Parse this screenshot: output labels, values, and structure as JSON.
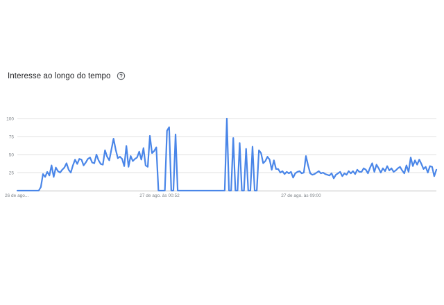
{
  "header": {
    "title": "Interesse ao longo do tempo",
    "help_icon": "help-circle-icon"
  },
  "colors": {
    "line": "#4a86e8",
    "grid": "#e0e0e0",
    "axis": "#bdbdbd",
    "text": "#80868b"
  },
  "chart_data": {
    "type": "line",
    "title": "Interesse ao longo do tempo",
    "xlabel": "",
    "ylabel": "",
    "ylim": [
      0,
      100
    ],
    "yticks": [
      25,
      50,
      75,
      100
    ],
    "grid": true,
    "x_ticks": [
      "26 de ago...",
      "27 de ago. às 00:52",
      "27 de ago. às 09:00"
    ],
    "series": [
      {
        "name": "",
        "values": [
          0,
          0,
          0,
          0,
          0,
          0,
          0,
          0,
          0,
          0,
          0,
          5,
          23,
          19,
          26,
          21,
          35,
          19,
          32,
          27,
          25,
          29,
          32,
          38,
          29,
          25,
          35,
          43,
          37,
          44,
          43,
          35,
          39,
          44,
          46,
          39,
          38,
          50,
          42,
          37,
          36,
          56,
          47,
          42,
          57,
          72,
          57,
          45,
          47,
          44,
          34,
          62,
          33,
          48,
          41,
          44,
          46,
          54,
          43,
          59,
          35,
          33,
          76,
          52,
          55,
          60,
          0,
          0,
          0,
          0,
          83,
          88,
          0,
          0,
          78,
          0,
          0,
          0,
          0,
          0,
          0,
          0,
          0,
          0,
          0,
          0,
          0,
          0,
          0,
          0,
          0,
          0,
          0,
          0,
          0,
          0,
          0,
          0,
          100,
          0,
          0,
          73,
          0,
          0,
          66,
          0,
          0,
          58,
          0,
          0,
          61,
          0,
          0,
          56,
          52,
          38,
          41,
          47,
          43,
          29,
          42,
          30,
          30,
          25,
          27,
          23,
          26,
          24,
          26,
          18,
          24,
          26,
          27,
          24,
          25,
          48,
          35,
          24,
          22,
          23,
          25,
          27,
          24,
          25,
          23,
          22,
          21,
          24,
          17,
          22,
          24,
          26,
          20,
          24,
          22,
          27,
          24,
          27,
          23,
          29,
          26,
          26,
          31,
          29,
          24,
          32,
          38,
          26,
          36,
          31,
          25,
          31,
          27,
          34,
          28,
          31,
          26,
          28,
          31,
          33,
          28,
          24,
          35,
          26,
          46,
          34,
          42,
          36,
          43,
          37,
          30,
          33,
          25,
          34,
          33,
          20,
          29
        ]
      }
    ]
  }
}
